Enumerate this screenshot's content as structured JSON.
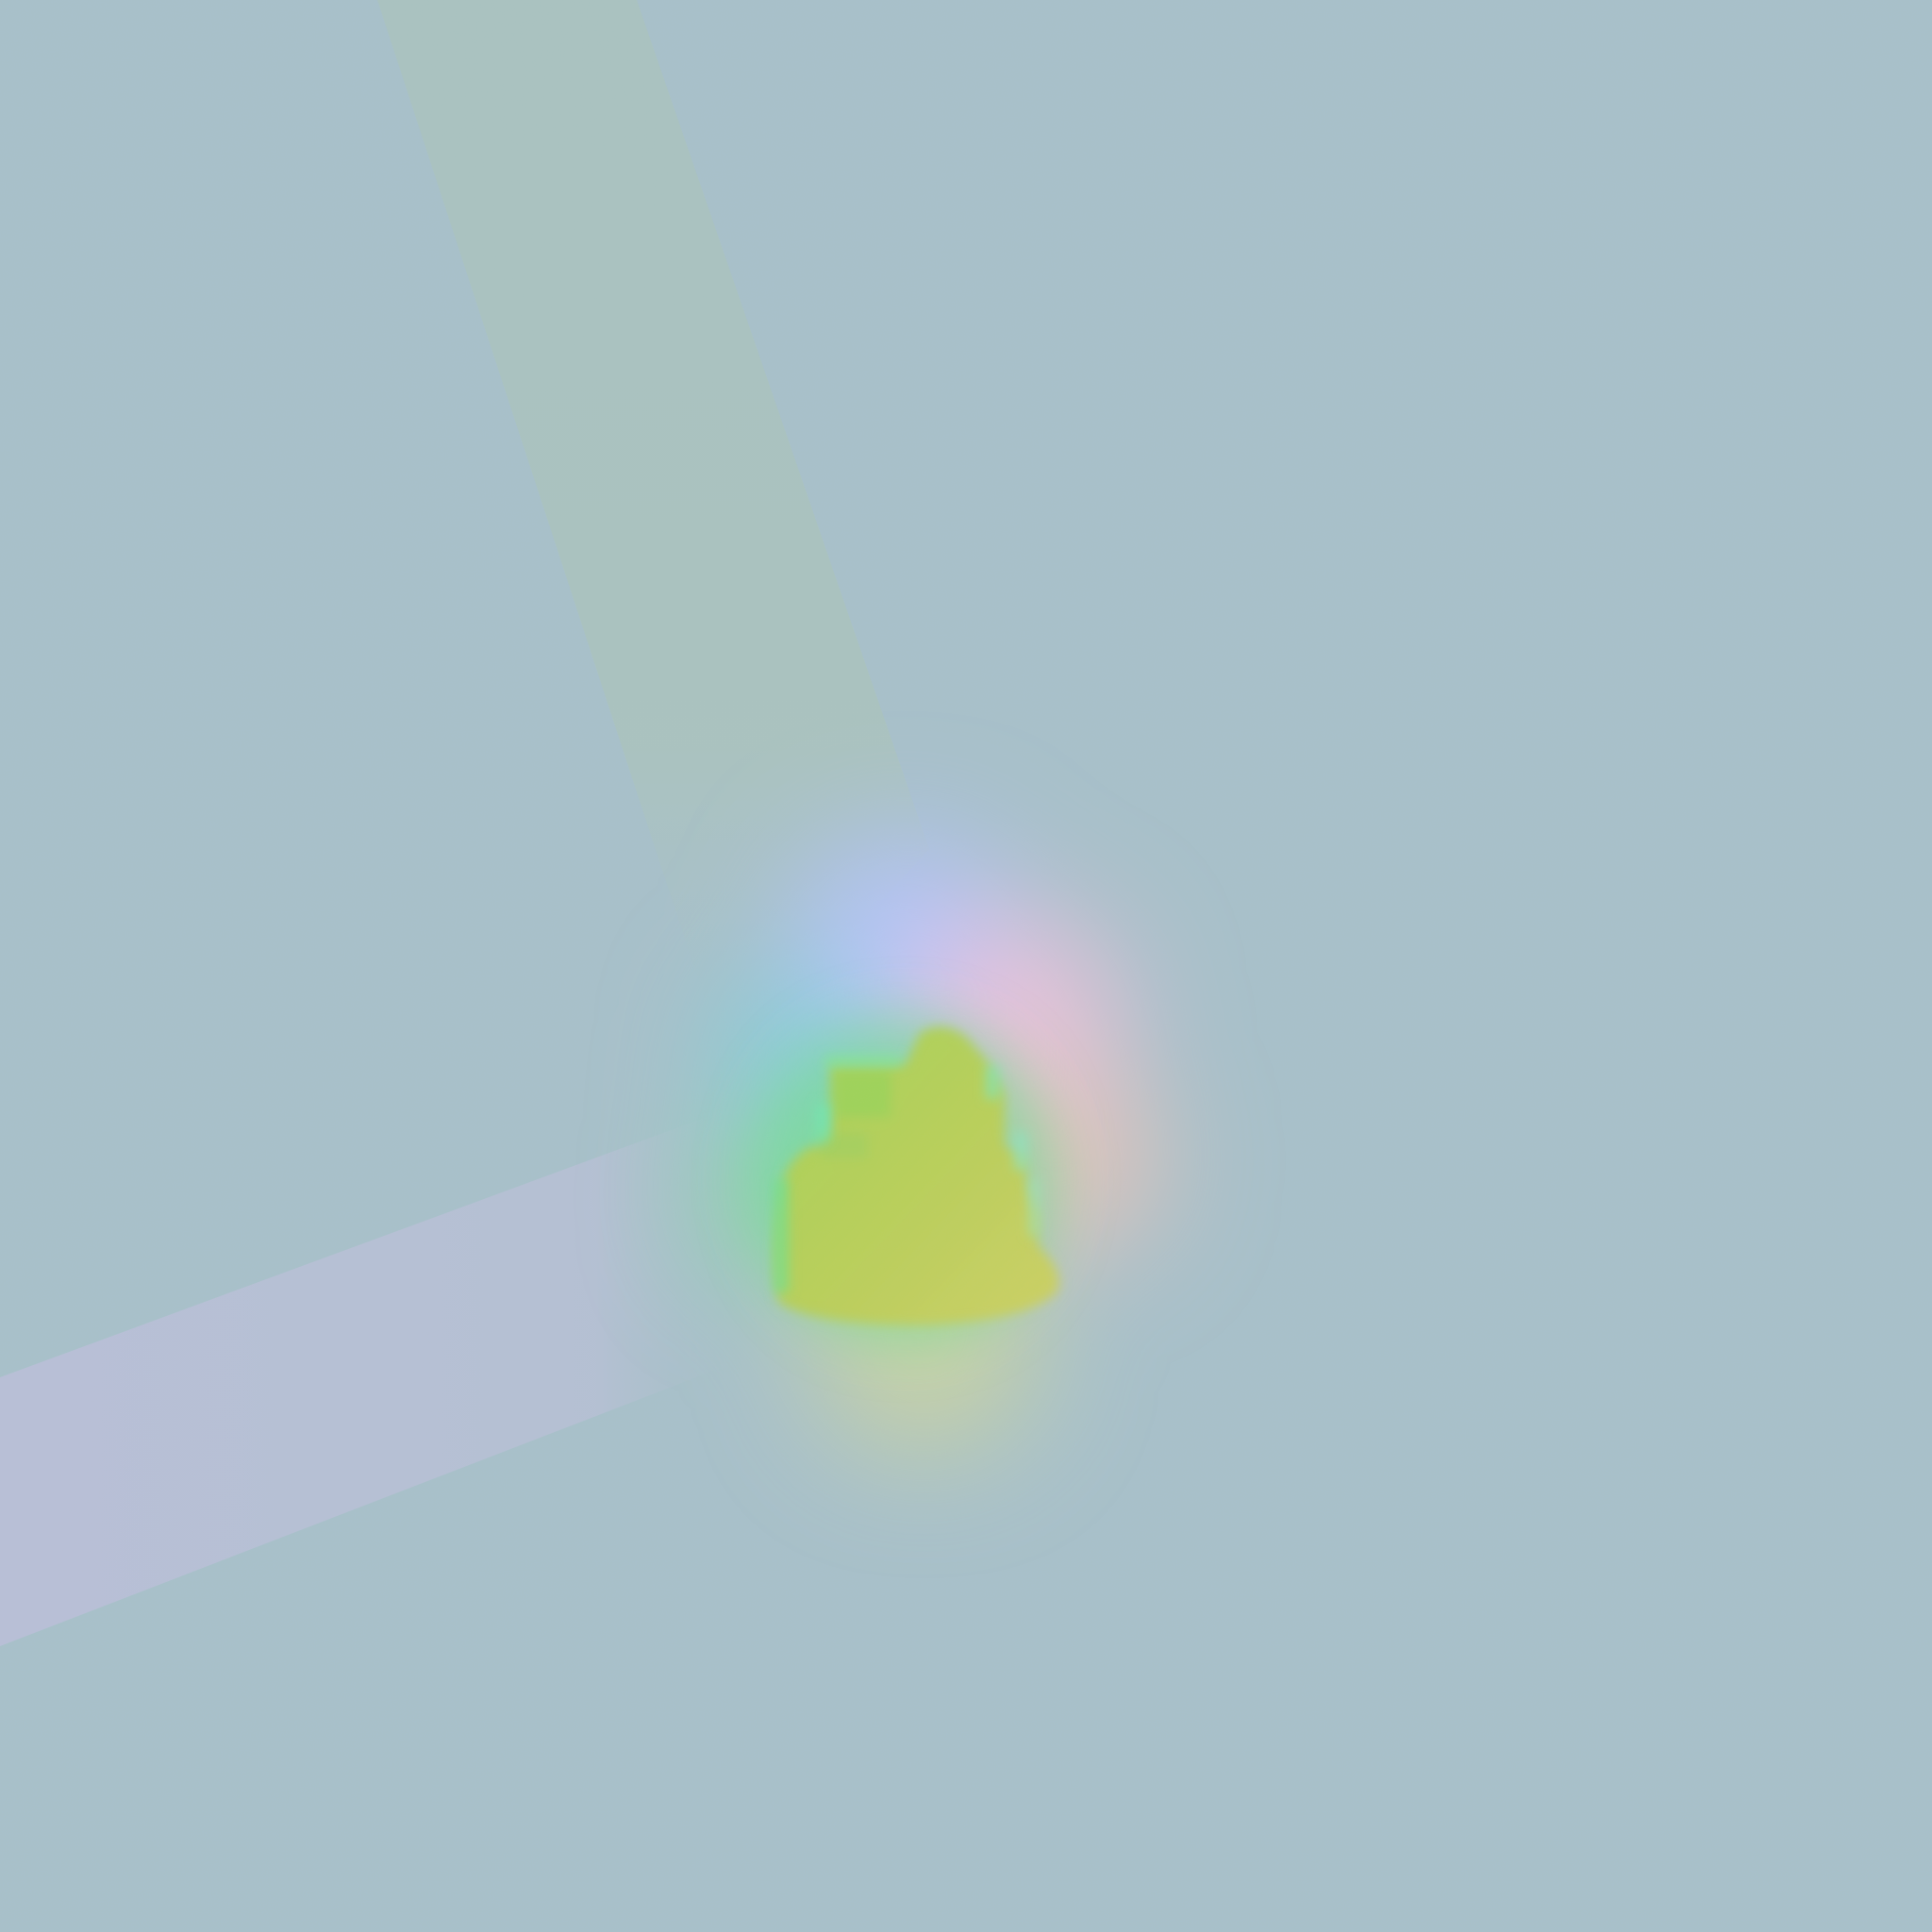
{
  "scene": {
    "description_colors": {
      "background": "#a7c0ca",
      "upper_band": "#acc3be",
      "lower_band": "#b9bfd8",
      "glow_blue": "#b3c4ff",
      "glow_pink": "#f3c0d6",
      "glow_green": "#6fd9b0",
      "glow_yellow": "#d9e08a",
      "blob_core": "#b3cf5a",
      "blob_edge": "#7fe58a"
    }
  }
}
